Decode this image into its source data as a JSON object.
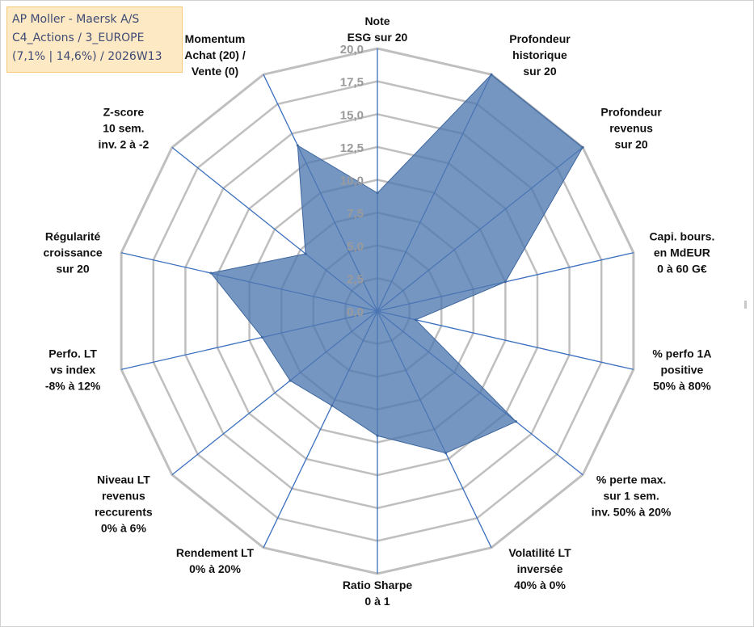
{
  "title_box": {
    "line1": "AP Moller - Maersk A/S",
    "line2": "C4_Actions / 3_EUROPE",
    "line3": "(7,1% | 14,6%) / 2026W13"
  },
  "colors": {
    "fill": "#4f79b1",
    "spoke": "#3a6fbf",
    "grid": "#bfbfbf",
    "title_bg": "#fde9c4"
  },
  "chart_data": {
    "type": "radar",
    "rlim": [
      0,
      20
    ],
    "ticks": [
      "0,0",
      "2,5",
      "5,0",
      "7,5",
      "10,0",
      "12,5",
      "15,0",
      "17,5",
      "20,0"
    ],
    "grid": true,
    "axes": [
      {
        "label": [
          "Note",
          "ESG sur 20"
        ],
        "value": 9.0
      },
      {
        "label": [
          "Profondeur",
          "historique",
          "sur 20"
        ],
        "value": 20.0
      },
      {
        "label": [
          "Profondeur",
          "revenus",
          "sur 20"
        ],
        "value": 20.0
      },
      {
        "label": [
          "Capi. bours.",
          "en MdEUR",
          "0 à 60 G€"
        ],
        "value": 10.0
      },
      {
        "label": [
          "% perfo 1A",
          "positive",
          "50% à 80%"
        ],
        "value": 3.0
      },
      {
        "label": [
          "% perte max.",
          "sur 1 sem.",
          "inv. 50% à 20%"
        ],
        "value": 13.5
      },
      {
        "label": [
          "Volatilité LT",
          "inversée",
          "40% à 0%"
        ],
        "value": 12.0
      },
      {
        "label": [
          "Ratio Sharpe",
          "0 à 1"
        ],
        "value": 9.5
      },
      {
        "label": [
          "Rendement LT",
          "0% à 20%"
        ],
        "value": 8.0
      },
      {
        "label": [
          "Niveau LT",
          "revenus",
          "reccurents",
          "0% à 6%"
        ],
        "value": 8.5
      },
      {
        "label": [
          "Perfo. LT",
          "vs index",
          "-8% à 12%"
        ],
        "value": 9.0
      },
      {
        "label": [
          "Régularité",
          "croissance",
          "sur 20"
        ],
        "value": 13.0
      },
      {
        "label": [
          "Z-score",
          "10 sem.",
          "inv. 2 à -2"
        ],
        "value": 7.0
      },
      {
        "label": [
          "Momentum",
          "Achat (20) /",
          "Vente (0)"
        ],
        "value": 14.0
      }
    ]
  }
}
